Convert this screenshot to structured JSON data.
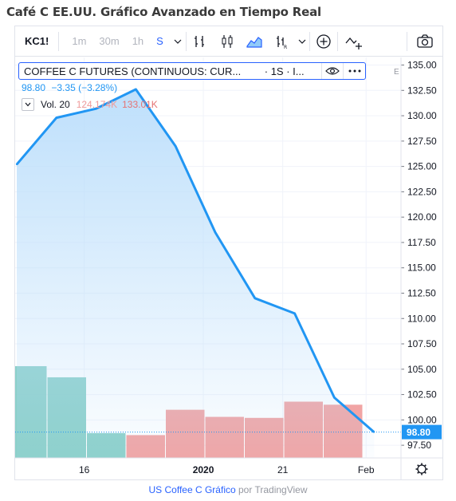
{
  "page": {
    "title": "Café C EE.UU. Gráfico Avanzado en Tiempo Real"
  },
  "toolbar": {
    "symbol": "KC1!",
    "timeframes": [
      "1m",
      "30m",
      "1h",
      "S"
    ],
    "active_timeframe": "S"
  },
  "legend": {
    "name": "COFFEE C FUTURES (CONTINUOUS: CUR...",
    "meta": "· 1S · I...",
    "last_price": "98.80",
    "change": "−3.35 (−3.28%)",
    "volume_label": "Vol. 20",
    "volume_value_1": "124.174K",
    "volume_value_2": "133.01K",
    "exchange_marker": "E"
  },
  "chart_data": {
    "type": "area",
    "title": "",
    "xlabel": "",
    "ylabel": "",
    "ylim": [
      96.25,
      135.75
    ],
    "x_tick_labels": [
      "16",
      "2020",
      "21",
      "Feb"
    ],
    "y_ticks": [
      "97.50",
      "100.00",
      "102.50",
      "105.00",
      "107.50",
      "110.00",
      "112.50",
      "115.00",
      "117.50",
      "120.00",
      "122.50",
      "125.00",
      "127.50",
      "130.00",
      "132.50",
      "135.00"
    ],
    "price_line": [
      125.2,
      129.8,
      130.7,
      132.6,
      127.0,
      118.5,
      112.0,
      110.5,
      102.2,
      98.8
    ],
    "volume_bars": [
      {
        "value": 105.3,
        "direction": "up"
      },
      {
        "value": 104.2,
        "direction": "up"
      },
      {
        "value": 98.7,
        "direction": "up"
      },
      {
        "value": 98.5,
        "direction": "down"
      },
      {
        "value": 101.0,
        "direction": "down"
      },
      {
        "value": 100.3,
        "direction": "down"
      },
      {
        "value": 100.2,
        "direction": "down"
      },
      {
        "value": 101.8,
        "direction": "down"
      },
      {
        "value": 101.5,
        "direction": "down"
      }
    ],
    "last_price_label": "98.80",
    "colors": {
      "line": "#2196f3",
      "area_top": "#bbdefb",
      "volume_up": "#80cbc4",
      "volume_down": "#ef9a9a",
      "last_price_bg": "#2196f3"
    }
  },
  "footer": {
    "link_text": "US Coffee C Gráfico",
    "by_text": "por TradingView"
  }
}
